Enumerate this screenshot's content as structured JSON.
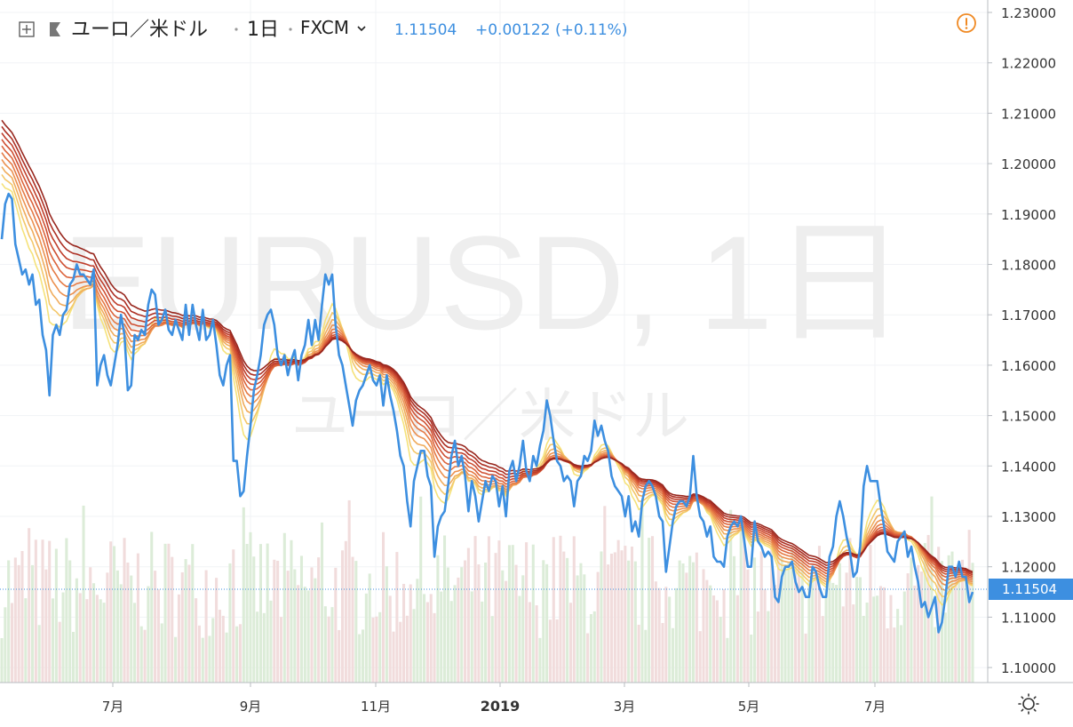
{
  "header": {
    "symbol": "ユーロ／米ドル",
    "interval": "1日",
    "exchange": "FXCM",
    "last_price": "1.11504",
    "change": "+0.00122 (+0.11%)"
  },
  "watermark": {
    "line1": "EURUSD, 1日",
    "line2": "ユーロ／米ドル"
  },
  "price_axis": {
    "ticks": [
      "1.23000",
      "1.22000",
      "1.21000",
      "1.20000",
      "1.19000",
      "1.18000",
      "1.17000",
      "1.16000",
      "1.15000",
      "1.14000",
      "1.13000",
      "1.12000",
      "1.11000",
      "1.10000"
    ],
    "current_label": "1.11504"
  },
  "time_axis": {
    "ticks": [
      "7月",
      "9月",
      "11月",
      "2019",
      "3月",
      "5月",
      "7月"
    ]
  },
  "colors": {
    "price_line": "#3d8fe0",
    "ribbon": [
      "#f5e27a",
      "#f3c76a",
      "#f0ac5c",
      "#ec9150",
      "#e57a45",
      "#dc643c",
      "#cf5033",
      "#c03e2b",
      "#ad3024",
      "#98271e"
    ],
    "volume_up": "#dcecd8",
    "volume_down": "#f1dcdc",
    "warning": "#f08a24"
  },
  "chart_data": {
    "type": "line",
    "ylim": [
      1.1,
      1.23
    ],
    "x_labels": [
      "7月",
      "9月",
      "11月",
      "2019",
      "3月",
      "5月",
      "7月"
    ],
    "series": [
      {
        "values": [
          1.185,
          1.192,
          1.194,
          1.193,
          1.184,
          1.181,
          1.178,
          1.179,
          1.176,
          1.178,
          1.172,
          1.173,
          1.166,
          1.163,
          1.154,
          1.166,
          1.168,
          1.166,
          1.17,
          1.171,
          1.176,
          1.177,
          1.18,
          1.178,
          1.178,
          1.177,
          1.176,
          1.179,
          1.156,
          1.16,
          1.162,
          1.158,
          1.156,
          1.16,
          1.164,
          1.17,
          1.166,
          1.155,
          1.156,
          1.166,
          1.165,
          1.167,
          1.166,
          1.172,
          1.175,
          1.174,
          1.168,
          1.169,
          1.171,
          1.167,
          1.166,
          1.169,
          1.167,
          1.165,
          1.172,
          1.166,
          1.172,
          1.168,
          1.165,
          1.171,
          1.165,
          1.166,
          1.169,
          1.164,
          1.158,
          1.156,
          1.16,
          1.162,
          1.141,
          1.141,
          1.134,
          1.135,
          1.142,
          1.148,
          1.155,
          1.158,
          1.162,
          1.168,
          1.17,
          1.171,
          1.168,
          1.162,
          1.16,
          1.162,
          1.158,
          1.161,
          1.163,
          1.157,
          1.162,
          1.164,
          1.169,
          1.164,
          1.169,
          1.165,
          1.172,
          1.178,
          1.176,
          1.178,
          1.168,
          1.162,
          1.16,
          1.156,
          1.152,
          1.148,
          1.153,
          1.155,
          1.156,
          1.158,
          1.16,
          1.157,
          1.156,
          1.158,
          1.152,
          1.158,
          1.154,
          1.151,
          1.147,
          1.142,
          1.14,
          1.133,
          1.128,
          1.137,
          1.14,
          1.143,
          1.143,
          1.138,
          1.136,
          1.122,
          1.128,
          1.13,
          1.131,
          1.136,
          1.142,
          1.145,
          1.14,
          1.142,
          1.138,
          1.131,
          1.137,
          1.134,
          1.129,
          1.133,
          1.137,
          1.135,
          1.138,
          1.137,
          1.132,
          1.136,
          1.13,
          1.139,
          1.141,
          1.137,
          1.14,
          1.145,
          1.139,
          1.137,
          1.142,
          1.14,
          1.144,
          1.147,
          1.153,
          1.15,
          1.145,
          1.141,
          1.14,
          1.137,
          1.138,
          1.137,
          1.132,
          1.137,
          1.138,
          1.142,
          1.141,
          1.143,
          1.149,
          1.146,
          1.148,
          1.145,
          1.143,
          1.138,
          1.136,
          1.135,
          1.134,
          1.13,
          1.134,
          1.127,
          1.129,
          1.126,
          1.133,
          1.136,
          1.137,
          1.136,
          1.134,
          1.13,
          1.129,
          1.119,
          1.124,
          1.129,
          1.132,
          1.133,
          1.133,
          1.132,
          1.134,
          1.142,
          1.134,
          1.13,
          1.129,
          1.126,
          1.128,
          1.122,
          1.121,
          1.121,
          1.12,
          1.126,
          1.128,
          1.129,
          1.128,
          1.13,
          1.125,
          1.12,
          1.12,
          1.129,
          1.125,
          1.124,
          1.122,
          1.123,
          1.122,
          1.114,
          1.113,
          1.118,
          1.12,
          1.12,
          1.121,
          1.117,
          1.115,
          1.116,
          1.114,
          1.114,
          1.12,
          1.119,
          1.116,
          1.114,
          1.114,
          1.122,
          1.124,
          1.13,
          1.133,
          1.13,
          1.126,
          1.123,
          1.118,
          1.119,
          1.124,
          1.136,
          1.14,
          1.137,
          1.137,
          1.137,
          1.132,
          1.128,
          1.123,
          1.122,
          1.121,
          1.125,
          1.126,
          1.127,
          1.122,
          1.124,
          1.12,
          1.117,
          1.112,
          1.113,
          1.11,
          1.112,
          1.114,
          1.107,
          1.109,
          1.114,
          1.12,
          1.12,
          1.118,
          1.121,
          1.118,
          1.118,
          1.113,
          1.115
        ]
      }
    ]
  }
}
